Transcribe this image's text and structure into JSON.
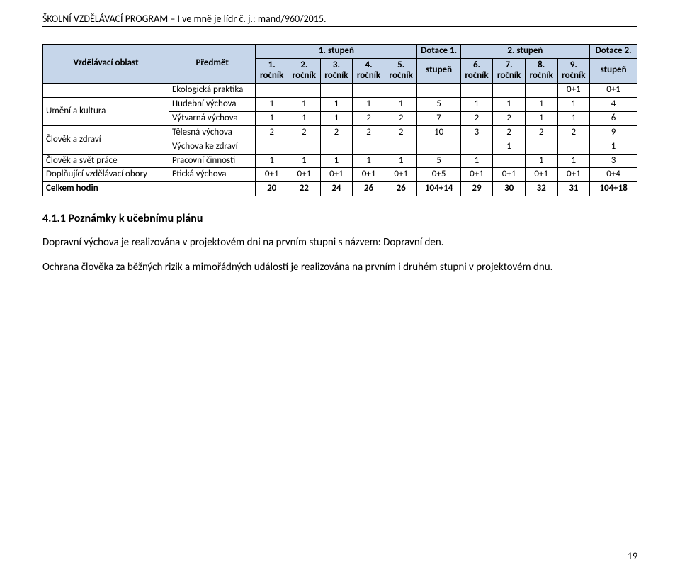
{
  "header": "ŠKOLNÍ VZDĚLÁVACÍ PROGRAM – I ve mně je lídr č. j.: mand/960/2015.",
  "table": {
    "colheads": {
      "oblast": "Vzdělávací oblast",
      "predmet": "Předmět",
      "stupen1": "1. stupeň",
      "dot1_a": "Dotace 1.",
      "dot1_b": "stupeň",
      "stupen2": "2. stupeň",
      "dot2_a": "Dotace 2.",
      "dot2_b": "stupeň",
      "r1a": "1.",
      "r1b": "ročník",
      "r2a": "2.",
      "r2b": "ročník",
      "r3a": "3.",
      "r3b": "ročník",
      "r4a": "4.",
      "r4b": "ročník",
      "r5a": "5.",
      "r5b": "ročník",
      "r6a": "6.",
      "r6b": "ročník",
      "r7a": "7.",
      "r7b": "ročník",
      "r8a": "8.",
      "r8b": "ročník",
      "r9a": "9.",
      "r9b": "ročník"
    },
    "rows": {
      "ekolog": {
        "predmet": "Ekologická praktika",
        "v9": "0+1",
        "dot2": "0+1"
      },
      "umeni_label": "Umění a kultura",
      "hudebni": {
        "predmet": "Hudební výchova",
        "v": [
          "1",
          "1",
          "1",
          "1",
          "1",
          "5",
          "1",
          "1",
          "1",
          "1",
          "4"
        ]
      },
      "vytvarna": {
        "predmet": "Výtvarná výchova",
        "v": [
          "1",
          "1",
          "1",
          "2",
          "2",
          "7",
          "2",
          "2",
          "1",
          "1",
          "6"
        ]
      },
      "zdravi_label": "Člověk a zdraví",
      "telesna": {
        "predmet": "Tělesná výchova",
        "v": [
          "2",
          "2",
          "2",
          "2",
          "2",
          "10",
          "3",
          "2",
          "2",
          "2",
          "9"
        ]
      },
      "vychovake": {
        "predmet": "Výchova ke zdraví",
        "v7": "1",
        "dot2": "1"
      },
      "prace_label": "Člověk a svět práce",
      "pracovni": {
        "predmet": "Pracovní činnosti",
        "v": [
          "1",
          "1",
          "1",
          "1",
          "1",
          "5",
          "1",
          "",
          "1",
          "1",
          "3"
        ]
      },
      "dopln_label": "Doplňující vzdělávací obory",
      "eticka": {
        "predmet": "Etická výchova",
        "v": [
          "0+1",
          "0+1",
          "0+1",
          "0+1",
          "0+1",
          "0+5",
          "0+1",
          "0+1",
          "0+1",
          "0+1",
          "0+4"
        ]
      },
      "celkem_label": "Celkem hodin",
      "celkem": {
        "v": [
          "20",
          "22",
          "24",
          "26",
          "26",
          "104+14",
          "29",
          "30",
          "32",
          "31",
          "104+18"
        ]
      }
    }
  },
  "section_title": "4.1.1  Poznámky k učebnímu plánu",
  "para1": "Dopravní výchova je realizována v projektovém dni na prvním stupni s názvem: Dopravní den.",
  "para2": "Ochrana člověka za běžných rizik a mimořádných událostí je realizována na prvním i druhém stupni v projektovém dnu.",
  "page_number": "19"
}
